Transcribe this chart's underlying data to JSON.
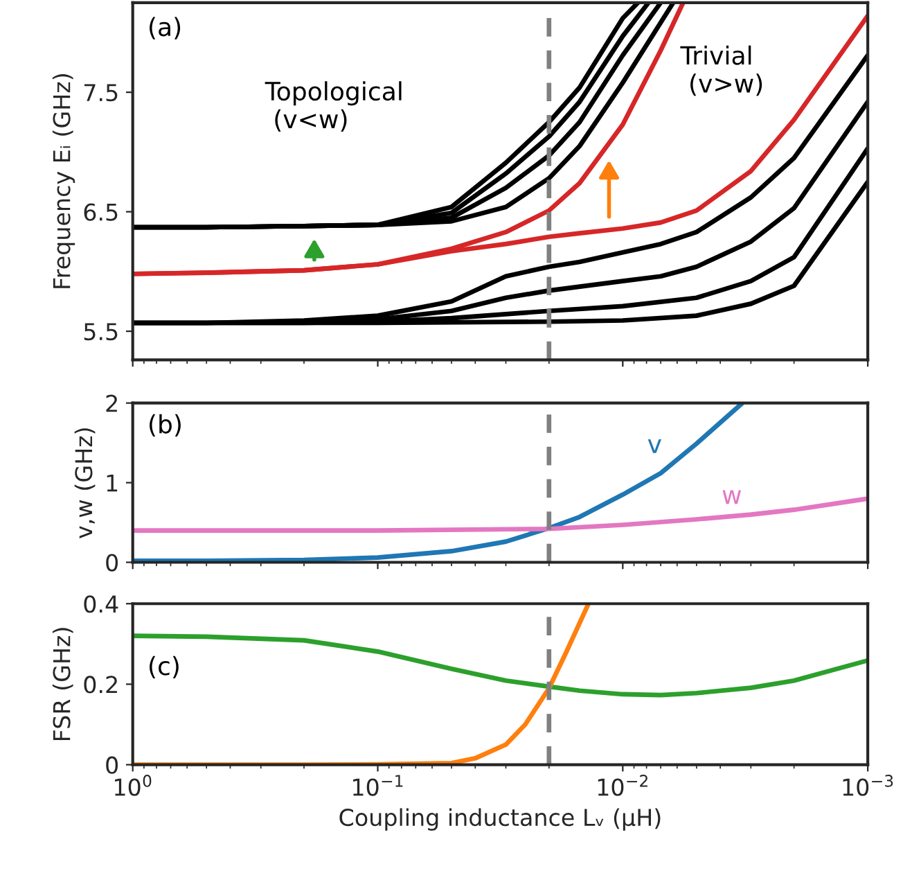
{
  "chart_data": [
    {
      "type": "line",
      "ylabel": "Frequency Eᵢ (GHz)",
      "log": "x",
      "xlim": [
        1,
        0.001
      ],
      "ylim": [
        5.26,
        8.25
      ],
      "xticks": [
        {
          "value": 1,
          "label": null
        },
        {
          "value": 0.1,
          "label": null
        },
        {
          "value": 0.01,
          "label": null
        },
        {
          "value": 0.001,
          "label": null
        }
      ],
      "yticks": [
        5.5,
        6.5,
        7.5
      ],
      "tick_labels": "y",
      "grid": false,
      "legend": false,
      "annotations": [
        "(a)",
        "Topological\n (v<w)",
        "Trivial\n (v>w)"
      ],
      "ref_lines": [
        {
          "axis": "x",
          "value": 0.02,
          "color": "#808080",
          "line_style": "dashed"
        }
      ],
      "series": [
        {
          "color": "#000000",
          "x": [
            1,
            0.5,
            0.2,
            0.1,
            0.05,
            0.03,
            0.02,
            0.015,
            0.01,
            0.00867
          ],
          "values": [
            6.37,
            6.37,
            6.38,
            6.39,
            6.54,
            6.91,
            7.25,
            7.54,
            8.12,
            8.25
          ]
        },
        {
          "color": "#000000",
          "x": [
            1,
            0.5,
            0.2,
            0.1,
            0.05,
            0.03,
            0.02,
            0.015,
            0.01,
            0.00785
          ],
          "values": [
            6.37,
            6.37,
            6.38,
            6.39,
            6.49,
            6.82,
            7.13,
            7.42,
            7.97,
            8.25
          ]
        },
        {
          "color": "#000000",
          "x": [
            1,
            0.5,
            0.2,
            0.1,
            0.05,
            0.03,
            0.02,
            0.015,
            0.01,
            0.007
          ],
          "values": [
            6.37,
            6.37,
            6.38,
            6.39,
            6.45,
            6.7,
            6.97,
            7.25,
            7.81,
            8.25
          ]
        },
        {
          "color": "#000000",
          "x": [
            1,
            0.5,
            0.2,
            0.1,
            0.05,
            0.03,
            0.02,
            0.015,
            0.01,
            0.00622
          ],
          "values": [
            6.37,
            6.37,
            6.38,
            6.39,
            6.42,
            6.54,
            6.78,
            7.05,
            7.58,
            8.25
          ]
        },
        {
          "color": "#d62728",
          "x": [
            1,
            0.5,
            0.2,
            0.1,
            0.05,
            0.03,
            0.02,
            0.015,
            0.01,
            0.007,
            0.00567
          ],
          "values": [
            5.98,
            5.99,
            6.01,
            6.06,
            6.19,
            6.33,
            6.51,
            6.74,
            7.23,
            7.85,
            8.25
          ]
        },
        {
          "color": "#d62728",
          "x": [
            1,
            0.5,
            0.2,
            0.1,
            0.05,
            0.03,
            0.02,
            0.015,
            0.01,
            0.007,
            0.005,
            0.003,
            0.002,
            0.001
          ],
          "values": [
            5.98,
            5.99,
            6.01,
            6.06,
            6.17,
            6.23,
            6.29,
            6.32,
            6.36,
            6.41,
            6.51,
            6.84,
            7.27,
            8.14
          ]
        },
        {
          "color": "#000000",
          "x": [
            1,
            0.5,
            0.2,
            0.1,
            0.05,
            0.03,
            0.02,
            0.015,
            0.01,
            0.007,
            0.005,
            0.003,
            0.002,
            0.001
          ],
          "values": [
            5.57,
            5.57,
            5.59,
            5.63,
            5.75,
            5.96,
            6.04,
            6.08,
            6.16,
            6.23,
            6.33,
            6.62,
            6.95,
            7.81
          ]
        },
        {
          "color": "#000000",
          "x": [
            1,
            0.5,
            0.2,
            0.1,
            0.05,
            0.03,
            0.02,
            0.01,
            0.007,
            0.005,
            0.003,
            0.002,
            0.001
          ],
          "values": [
            5.57,
            5.57,
            5.58,
            5.6,
            5.67,
            5.78,
            5.84,
            5.92,
            5.96,
            6.04,
            6.25,
            6.53,
            7.42
          ]
        },
        {
          "color": "#000000",
          "x": [
            1,
            0.5,
            0.2,
            0.1,
            0.05,
            0.02,
            0.01,
            0.005,
            0.003,
            0.002,
            0.001
          ],
          "values": [
            5.57,
            5.57,
            5.57,
            5.58,
            5.61,
            5.67,
            5.71,
            5.78,
            5.92,
            6.12,
            7.03
          ]
        },
        {
          "color": "#000000",
          "x": [
            1,
            0.5,
            0.2,
            0.1,
            0.02,
            0.01,
            0.005,
            0.003,
            0.002,
            0.001
          ],
          "values": [
            5.57,
            5.57,
            5.57,
            5.57,
            5.58,
            5.59,
            5.63,
            5.73,
            5.88,
            6.75
          ]
        }
      ]
    },
    {
      "type": "line",
      "ylabel": "v,w (GHz)",
      "log": "x",
      "xlim": [
        1,
        0.001
      ],
      "ylim": [
        0,
        2
      ],
      "xticks": [
        {
          "value": 1,
          "label": null
        },
        {
          "value": 0.1,
          "label": null
        },
        {
          "value": 0.01,
          "label": null
        },
        {
          "value": 0.001,
          "label": null
        }
      ],
      "yticks": [
        0,
        1,
        2
      ],
      "tick_labels": "y",
      "grid": false,
      "legend": false,
      "annotations": [
        "(b)",
        "v",
        "w"
      ],
      "ref_lines": [
        {
          "axis": "x",
          "value": 0.02,
          "color": "#808080",
          "line_style": "dashed"
        }
      ],
      "series": [
        {
          "color": "#1f77b4",
          "x": [
            1,
            0.5,
            0.2,
            0.1,
            0.05,
            0.03,
            0.02,
            0.015,
            0.01,
            0.007,
            0.005,
            0.00325
          ],
          "values": [
            0.02,
            0.02,
            0.03,
            0.06,
            0.14,
            0.26,
            0.43,
            0.57,
            0.85,
            1.12,
            1.49,
            2.0
          ]
        },
        {
          "color": "#e377c2",
          "x": [
            1,
            0.1,
            0.02,
            0.01,
            0.005,
            0.003,
            0.002,
            0.001
          ],
          "values": [
            0.4,
            0.4,
            0.42,
            0.47,
            0.54,
            0.6,
            0.66,
            0.8
          ]
        }
      ]
    },
    {
      "type": "line",
      "xlabel": "Coupling inductance Lᵥ (μH)",
      "ylabel": "FSR (GHz)",
      "log": "x",
      "xlim": [
        1,
        0.001
      ],
      "ylim": [
        0,
        0.4
      ],
      "xticks": [
        {
          "value": 1,
          "label": "10$^{0}$"
        },
        {
          "value": 0.1,
          "label": "10$^{−1}$"
        },
        {
          "value": 0.01,
          "label": "10$^{−2}$"
        },
        {
          "value": 0.001,
          "label": "10$^{−3}$"
        }
      ],
      "yticks": [
        0,
        0.2,
        0.4
      ],
      "grid": false,
      "legend": false,
      "annotations": [
        "(c)"
      ],
      "ref_lines": [
        {
          "axis": "x",
          "value": 0.02,
          "color": "#808080",
          "line_style": "dashed"
        }
      ],
      "series": [
        {
          "color": "#2ca02c",
          "x": [
            1,
            0.5,
            0.2,
            0.1,
            0.05,
            0.03,
            0.02,
            0.015,
            0.01,
            0.007,
            0.005,
            0.003,
            0.002,
            0.001
          ],
          "values": [
            0.32,
            0.318,
            0.309,
            0.281,
            0.238,
            0.209,
            0.194,
            0.184,
            0.175,
            0.173,
            0.178,
            0.191,
            0.209,
            0.259
          ]
        },
        {
          "color": "#ff7f0e",
          "x": [
            1,
            0.5,
            0.2,
            0.1,
            0.05,
            0.04,
            0.03,
            0.025,
            0.02,
            0.017,
            0.0138
          ],
          "values": [
            0,
            0,
            0,
            0.001,
            0.004,
            0.016,
            0.05,
            0.1,
            0.19,
            0.28,
            0.4
          ]
        }
      ]
    }
  ]
}
